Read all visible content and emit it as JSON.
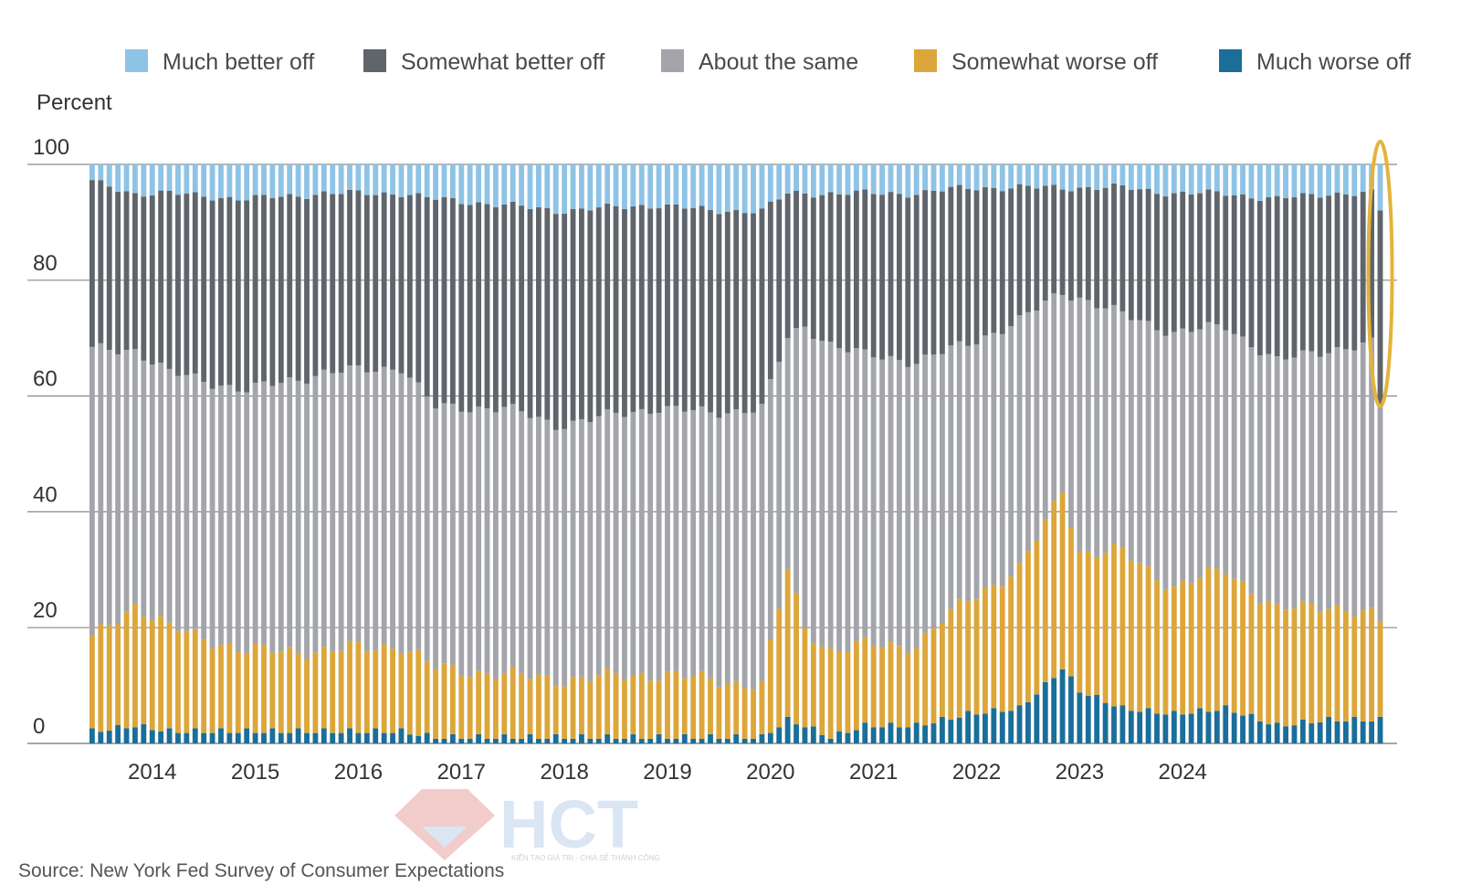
{
  "chart_data": {
    "type": "bar",
    "stacked": true,
    "title": "",
    "ylabel": "Percent",
    "xlabel": "",
    "ylim": [
      0,
      100
    ],
    "yticks": [
      0,
      20,
      40,
      60,
      80,
      100
    ],
    "grid": true,
    "legend_position": "top",
    "x_start": "2013-06",
    "x_frequency": "monthly",
    "year_labels": [
      "2014",
      "2015",
      "2016",
      "2017",
      "2018",
      "2019",
      "2020",
      "2021",
      "2022",
      "2023",
      "2024"
    ],
    "highlight_note": "latest month circled",
    "colors": {
      "much_better": "#8ec3e6",
      "somewhat_better": "#5f656b",
      "same": "#a3a5ab",
      "somewhat_worse": "#dca63a",
      "much_worse": "#1a6e99",
      "highlight": "#e3b33c",
      "grid": "#8a8a8a"
    },
    "series": [
      {
        "name": "Much better off",
        "key": "much_better"
      },
      {
        "name": "Somewhat better off",
        "key": "somewhat_better"
      },
      {
        "name": "About the same",
        "key": "same"
      },
      {
        "name": "Somewhat worse off",
        "key": "somewhat_worse"
      },
      {
        "name": "Much worse off",
        "key": "much_worse"
      }
    ],
    "anchors": {
      "comment": "monthly values are interpolated between these points (index = months since 2013-06); each entry = [index, much_worse, somewhat_worse_cumulative, same_cumulative, somewhat_better_cumulative]",
      "points": [
        [
          0,
          2,
          18,
          68,
          97
        ],
        [
          5,
          3,
          24,
          68,
          95
        ],
        [
          9,
          2,
          20,
          64,
          95
        ],
        [
          18,
          2,
          16,
          61,
          94
        ],
        [
          27,
          2,
          16,
          64,
          95
        ],
        [
          36,
          2,
          17,
          65,
          95
        ],
        [
          40,
          1,
          13,
          58,
          94
        ],
        [
          48,
          1,
          12,
          58,
          93
        ],
        [
          54,
          1,
          11,
          55,
          92
        ],
        [
          66,
          1,
          12,
          58,
          93
        ],
        [
          72,
          1,
          11,
          57,
          92
        ],
        [
          78,
          1,
          10,
          58,
          92
        ],
        [
          81,
          4,
          30,
          70,
          95
        ],
        [
          83,
          3,
          20,
          72,
          95
        ],
        [
          86,
          1,
          16,
          69,
          95
        ],
        [
          90,
          3,
          17,
          67,
          95
        ],
        [
          96,
          3,
          17,
          66,
          95
        ],
        [
          102,
          5,
          25,
          69,
          96
        ],
        [
          108,
          6,
          30,
          73,
          96
        ],
        [
          111,
          10,
          38,
          76,
          96
        ],
        [
          113,
          13,
          44,
          78,
          96
        ],
        [
          115,
          9,
          33,
          77,
          96
        ],
        [
          120,
          6,
          33,
          74,
          96
        ],
        [
          126,
          5,
          27,
          71,
          95
        ],
        [
          132,
          6,
          30,
          72,
          95
        ],
        [
          138,
          3,
          23,
          66,
          94
        ],
        [
          144,
          4,
          24,
          68,
          95
        ],
        [
          149,
          4,
          22,
          69,
          95
        ],
        [
          150,
          4,
          21,
          58,
          92
        ]
      ]
    }
  },
  "source": {
    "text": "Source: New York Fed Survey of Consumer Expectations"
  },
  "watermark": {
    "logo_text": "HCT",
    "tagline": "KIẾN TẠO GIÁ TRỊ - CHIA SẺ THÀNH CÔNG"
  }
}
